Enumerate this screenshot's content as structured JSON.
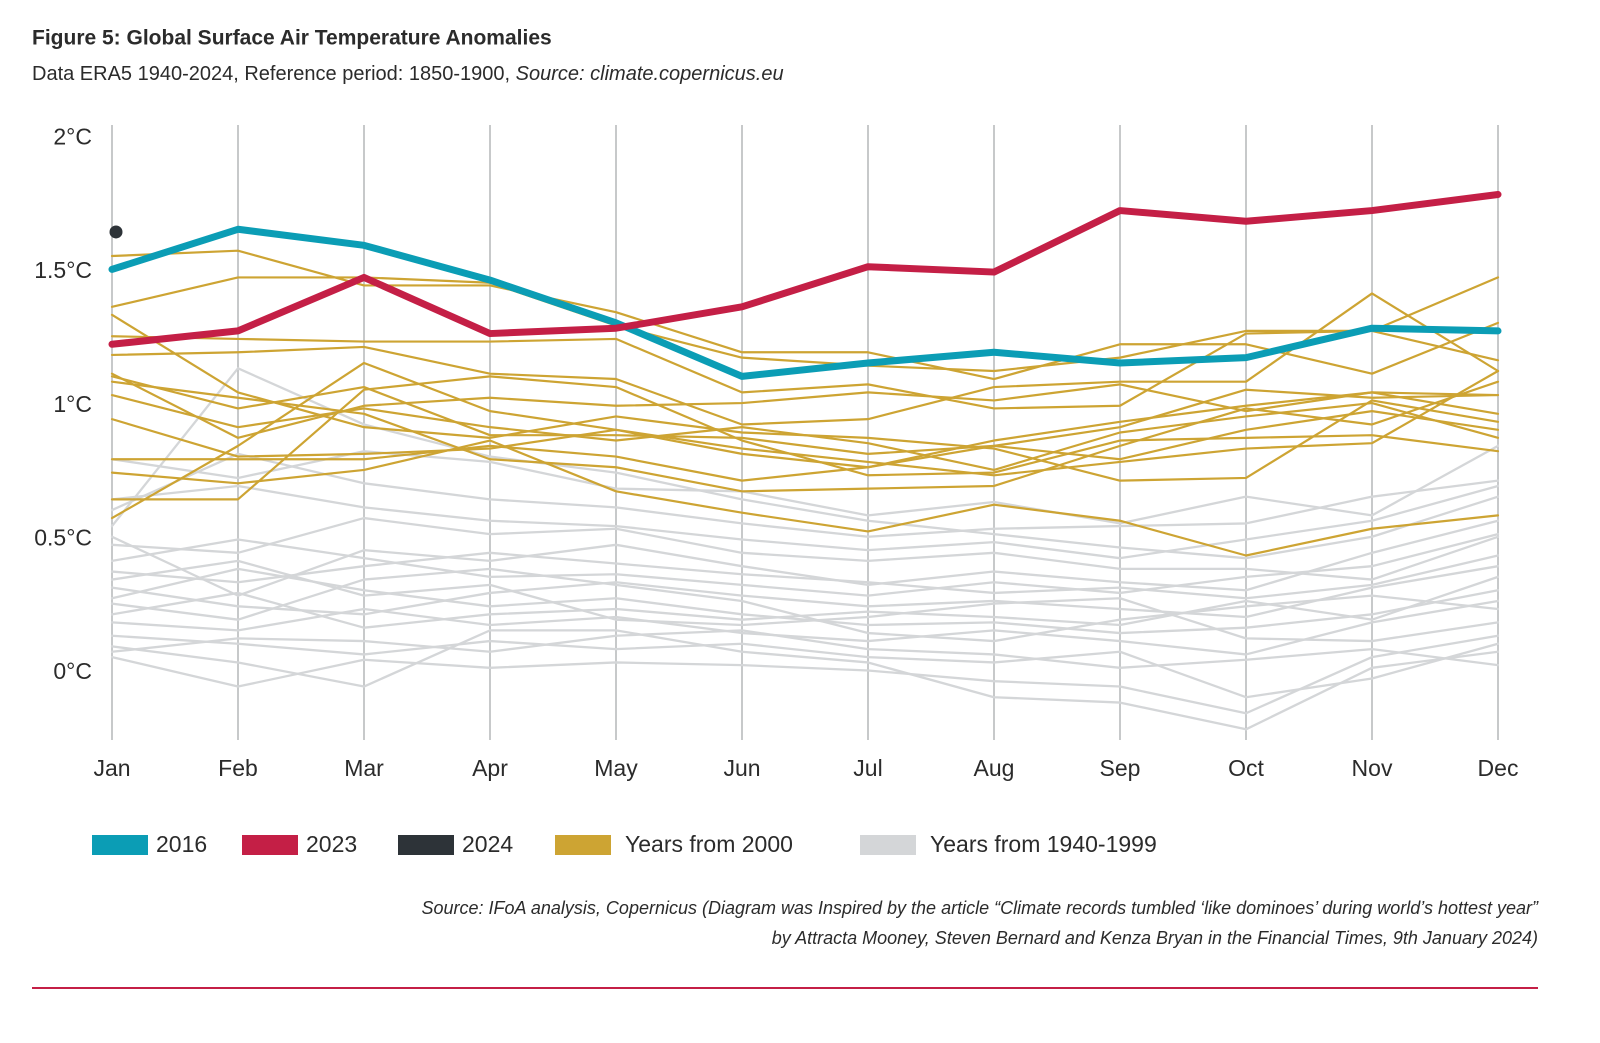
{
  "chart_data": {
    "type": "line",
    "title": "Figure 5: Global Surface Air Temperature Anomalies",
    "subtitle": "Data ERA5 1940-2024, Reference period: 1850-1900,",
    "subtitle_source": "Source: climate.copernicus.eu",
    "footnote": [
      "Source: IFoA analysis, Copernicus (Diagram was Inspired by the article “Climate records tumbled ‘like dominoes’ during world’s hottest year”",
      "by Attracta Mooney, Steven Bernard and Kenza Bryan in the Financial Times, 9th January 2024)"
    ],
    "categories": [
      "Jan",
      "Feb",
      "Mar",
      "Apr",
      "May",
      "Jun",
      "Jul",
      "Aug",
      "Sep",
      "Oct",
      "Nov",
      "Dec"
    ],
    "ylim": [
      -0.25,
      2.05
    ],
    "yticks": [
      {
        "value": 0,
        "label": "0°C"
      },
      {
        "value": 0.5,
        "label": "0.5°C"
      },
      {
        "value": 1,
        "label": "1°C"
      },
      {
        "value": 1.5,
        "label": "1.5°C"
      },
      {
        "value": 2,
        "label": "2°C"
      }
    ],
    "grid": true,
    "legend": "bottom",
    "series": [
      {
        "name": "Years from 1940-1999",
        "color": "#d4d6d8",
        "lines": [
          [
            0.61,
            0.82,
            0.71,
            0.65,
            0.62,
            0.56,
            0.51,
            0.54,
            0.55,
            0.56,
            0.66,
            0.72
          ],
          [
            0.8,
            0.73,
            0.83,
            0.79,
            0.69,
            0.68,
            0.59,
            0.64,
            0.56,
            0.66,
            0.59,
            0.85
          ],
          [
            0.55,
            1.14,
            0.93,
            0.81,
            0.75,
            0.65,
            0.57,
            0.52,
            0.47,
            0.43,
            0.51,
            0.66
          ],
          [
            0.48,
            0.45,
            0.58,
            0.52,
            0.54,
            0.45,
            0.42,
            0.45,
            0.39,
            0.39,
            0.35,
            0.51
          ],
          [
            0.38,
            0.34,
            0.4,
            0.45,
            0.41,
            0.37,
            0.34,
            0.3,
            0.32,
            0.28,
            0.33,
            0.44
          ],
          [
            0.32,
            0.25,
            0.22,
            0.3,
            0.34,
            0.29,
            0.25,
            0.27,
            0.24,
            0.21,
            0.32,
            0.4
          ],
          [
            0.28,
            0.39,
            0.31,
            0.25,
            0.28,
            0.22,
            0.18,
            0.19,
            0.15,
            0.17,
            0.22,
            0.31
          ],
          [
            0.19,
            0.16,
            0.24,
            0.18,
            0.21,
            0.15,
            0.12,
            0.16,
            0.12,
            0.07,
            0.19,
            0.27
          ],
          [
            0.14,
            0.11,
            0.07,
            0.12,
            0.09,
            0.11,
            0.06,
            0.04,
            0.08,
            -0.09,
            -0.02,
            0.11
          ],
          [
            0.06,
            -0.05,
            0.05,
            0.02,
            0.04,
            0.03,
            0.01,
            -0.03,
            -0.05,
            -0.15,
            0.06,
            0.14
          ],
          [
            0.1,
            0.04,
            -0.05,
            0.16,
            0.16,
            0.08,
            0.04,
            -0.09,
            -0.11,
            -0.21,
            0.02,
            0.08
          ],
          [
            0.22,
            0.3,
            0.17,
            0.22,
            0.24,
            0.2,
            0.23,
            0.21,
            0.18,
            0.27,
            0.2,
            0.36
          ],
          [
            0.42,
            0.5,
            0.43,
            0.36,
            0.37,
            0.33,
            0.29,
            0.34,
            0.3,
            0.36,
            0.4,
            0.52
          ],
          [
            0.51,
            0.29,
            0.46,
            0.42,
            0.48,
            0.4,
            0.33,
            0.38,
            0.34,
            0.31,
            0.45,
            0.57
          ],
          [
            0.26,
            0.2,
            0.35,
            0.39,
            0.33,
            0.27,
            0.15,
            0.12,
            0.2,
            0.25,
            0.29,
            0.24
          ],
          [
            0.65,
            0.7,
            0.62,
            0.57,
            0.55,
            0.5,
            0.46,
            0.49,
            0.43,
            0.5,
            0.57,
            0.7
          ],
          [
            0.35,
            0.42,
            0.29,
            0.33,
            0.2,
            0.18,
            0.21,
            0.26,
            0.28,
            0.13,
            0.12,
            0.19
          ],
          [
            0.08,
            0.13,
            0.12,
            0.08,
            0.14,
            0.16,
            0.09,
            0.07,
            0.02,
            0.05,
            0.09,
            0.03
          ]
        ]
      },
      {
        "name": "Years from 2000",
        "color": "#cda433",
        "lines": [
          [
            1.56,
            1.58,
            1.45,
            1.45,
            1.35,
            1.2,
            1.2,
            1.1,
            1.23,
            1.23,
            1.12,
            1.31
          ],
          [
            1.37,
            1.48,
            1.48,
            1.46,
            1.3,
            1.18,
            1.15,
            1.13,
            1.18,
            1.28,
            1.28,
            1.17
          ],
          [
            1.26,
            1.25,
            1.24,
            1.24,
            1.25,
            1.05,
            1.08,
            0.99,
            1.0,
            1.27,
            1.28,
            1.48
          ],
          [
            1.19,
            1.2,
            1.22,
            1.12,
            1.1,
            0.93,
            0.95,
            1.07,
            1.09,
            1.09,
            1.42,
            1.13
          ],
          [
            1.11,
            0.99,
            1.07,
            0.89,
            0.89,
            0.88,
            0.82,
            0.85,
            0.92,
            1.06,
            1.03,
            1.04
          ],
          [
            1.04,
            0.92,
            0.99,
            0.92,
            0.87,
            0.92,
            0.86,
            0.76,
            0.9,
            0.96,
            1.01,
            0.88
          ],
          [
            0.95,
            0.81,
            0.82,
            0.84,
            0.91,
            0.84,
            0.79,
            0.74,
            0.79,
            0.84,
            0.86,
            1.13
          ],
          [
            0.8,
            0.8,
            0.8,
            0.85,
            0.81,
            0.72,
            0.77,
            0.85,
            0.8,
            0.91,
            0.98,
            0.91
          ],
          [
            0.75,
            0.71,
            0.76,
            0.87,
            0.68,
            0.6,
            0.53,
            0.63,
            0.57,
            0.44,
            0.54,
            0.59
          ],
          [
            0.65,
            0.65,
            1.06,
            1.11,
            1.07,
            0.87,
            0.74,
            0.75,
            0.87,
            0.88,
            0.89,
            0.83
          ],
          [
            0.58,
            0.85,
            1.16,
            0.98,
            0.91,
            0.82,
            0.77,
            0.87,
            0.94,
            1.0,
            1.05,
            1.04
          ],
          [
            1.34,
            1.05,
            0.92,
            0.88,
            0.96,
            0.9,
            0.88,
            0.84,
            0.72,
            0.73,
            1.02,
            0.94
          ],
          [
            1.09,
            1.03,
            0.97,
            0.8,
            0.77,
            0.68,
            0.69,
            0.7,
            0.85,
            0.99,
            0.93,
            1.09
          ],
          [
            1.12,
            0.88,
            1.0,
            1.03,
            1.0,
            1.01,
            1.05,
            1.02,
            1.08,
            0.98,
            1.05,
            0.97
          ]
        ]
      },
      {
        "name": "2016",
        "color": "#0b9db5",
        "values": [
          1.51,
          1.66,
          1.6,
          1.47,
          1.31,
          1.11,
          1.16,
          1.2,
          1.16,
          1.18,
          1.29,
          1.28
        ]
      },
      {
        "name": "2023",
        "color": "#c41f46",
        "values": [
          1.23,
          1.28,
          1.48,
          1.27,
          1.29,
          1.37,
          1.52,
          1.5,
          1.73,
          1.69,
          1.73,
          1.79
        ]
      },
      {
        "name": "2024",
        "color": "#2d3338",
        "values": [
          1.65,
          null,
          null,
          null,
          null,
          null,
          null,
          null,
          null,
          null,
          null,
          null
        ]
      }
    ]
  }
}
